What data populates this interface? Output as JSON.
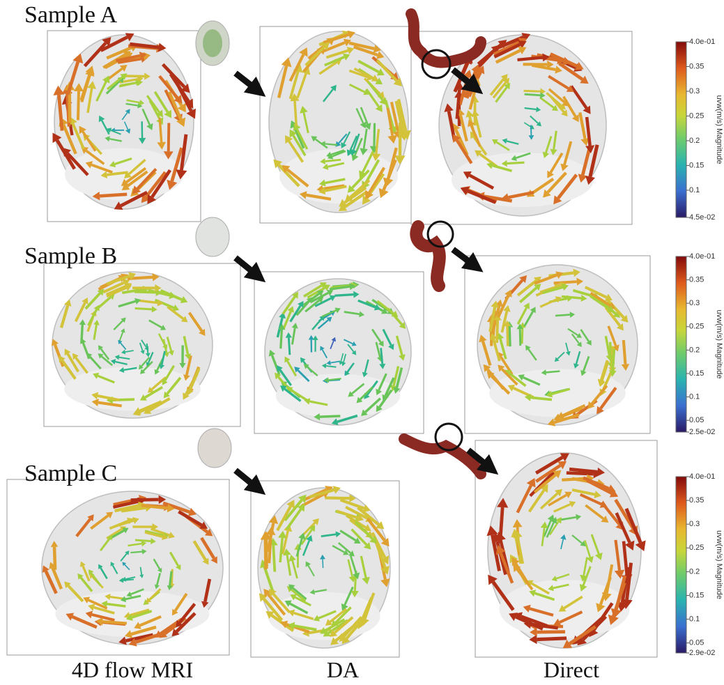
{
  "row_labels": [
    "Sample A",
    "Sample B",
    "Sample C"
  ],
  "column_labels": [
    "4D flow MRI",
    "DA",
    "Direct"
  ],
  "colorbars": [
    {
      "title": "uvw(m/s) Magnitude",
      "ticks": [
        {
          "value": 0.4,
          "label": "4.0e-01"
        },
        0.35,
        0.3,
        0.25,
        0.2,
        0.15,
        0.1,
        {
          "value": 0.045,
          "label": "4.5e-02"
        }
      ]
    },
    {
      "title": "uvw(m/s) Magnitude",
      "ticks": [
        {
          "value": 0.4,
          "label": "4.0e-01"
        },
        0.35,
        0.3,
        0.25,
        0.2,
        0.15,
        0.1,
        0.05,
        {
          "value": 0.025,
          "label": "2.5e-02"
        }
      ]
    },
    {
      "title": "uvw(m/s) Magnitude",
      "ticks": [
        {
          "value": 0.4,
          "label": "4.0e-01"
        },
        0.35,
        0.3,
        0.25,
        0.2,
        0.15,
        0.1,
        0.05,
        {
          "value": 0.029,
          "label": "2.9e-02"
        }
      ]
    }
  ]
}
